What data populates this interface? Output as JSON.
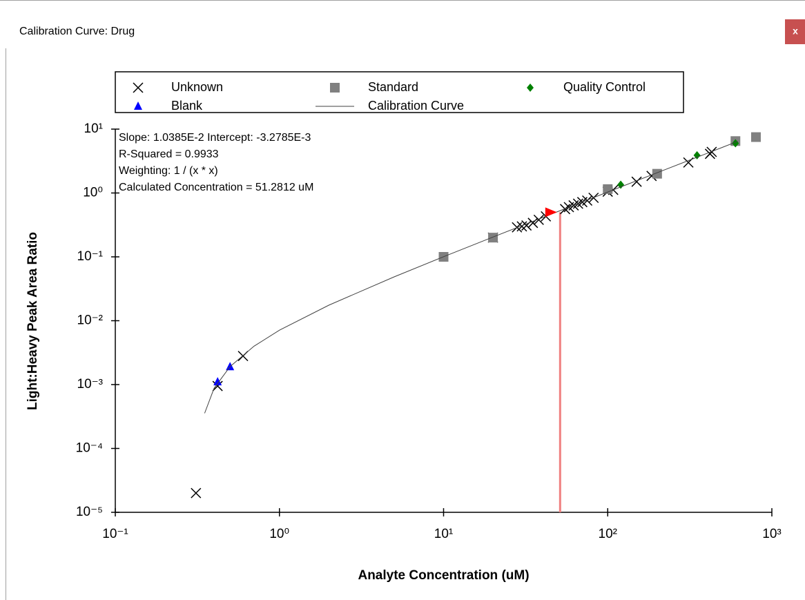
{
  "window": {
    "title": "Calibration Curve: Drug",
    "close": "x"
  },
  "chart_data": {
    "type": "scatter",
    "x_label": "Analyte Concentration (uM)",
    "y_label": "Light:Heavy Peak Area Ratio",
    "log_x": true,
    "log_y": true,
    "xlim": [
      0.1,
      1000
    ],
    "xticks": [
      {
        "value": 0.1,
        "label": "10⁻¹"
      },
      {
        "value": 1,
        "label": "10⁰"
      },
      {
        "value": 10,
        "label": "10¹"
      },
      {
        "value": 100,
        "label": "10²"
      },
      {
        "value": 1000,
        "label": "10³"
      }
    ],
    "ylim": [
      1e-05,
      10
    ],
    "yticks": [
      {
        "value": 1e-05,
        "label": "10⁻⁵"
      },
      {
        "value": 0.0001,
        "label": "10⁻⁴"
      },
      {
        "value": 0.001,
        "label": "10⁻³"
      },
      {
        "value": 0.01,
        "label": "10⁻²"
      },
      {
        "value": 0.1,
        "label": "10⁻¹"
      },
      {
        "value": 1,
        "label": "10⁰"
      },
      {
        "value": 10,
        "label": "10¹"
      }
    ],
    "annotations": [
      "Slope: 1.0385E-2 Intercept: -3.2785E-3",
      "R-Squared = 0.9933",
      "Weighting: 1 / (x * x)",
      "Calculated Concentration = 51.2812 uM"
    ],
    "series": [
      {
        "name": "Unknown",
        "marker": "x",
        "color": "#000000",
        "x": [
          0.31,
          0.42,
          0.6,
          20,
          28,
          30,
          32,
          35,
          38,
          42,
          55,
          58,
          62,
          66,
          70,
          75,
          82,
          100,
          108,
          150,
          185,
          310,
          420,
          430
        ],
        "values": [
          2e-05,
          0.00095,
          0.0028,
          0.2,
          0.29,
          0.3,
          0.31,
          0.34,
          0.38,
          0.43,
          0.56,
          0.6,
          0.64,
          0.68,
          0.72,
          0.76,
          0.84,
          1.05,
          1.12,
          1.5,
          1.85,
          3.0,
          4.1,
          4.4
        ]
      },
      {
        "name": "Standard",
        "marker": "square",
        "color": "#808080",
        "x": [
          10,
          20,
          100,
          200,
          600,
          800
        ],
        "values": [
          0.1,
          0.2,
          1.15,
          2.0,
          6.5,
          7.5
        ]
      },
      {
        "name": "Quality Control",
        "marker": "diamond",
        "color": "#008000",
        "x": [
          120,
          350,
          600
        ],
        "values": [
          1.35,
          3.9,
          6.0
        ]
      },
      {
        "name": "Blank",
        "marker": "triangle",
        "color": "#0000ff",
        "x": [
          0.42,
          0.5
        ],
        "values": [
          0.0011,
          0.0019
        ]
      },
      {
        "name": "Calibration Curve",
        "marker": "line",
        "color": "#404040",
        "x": [
          0.35,
          0.4,
          0.5,
          0.7,
          1,
          2,
          5,
          10,
          20,
          50,
          100,
          200,
          500,
          620
        ],
        "values": [
          0.000356,
          0.000876,
          0.00191,
          0.00399,
          0.00711,
          0.01749,
          0.0486,
          0.1006,
          0.2044,
          0.516,
          1.035,
          2.074,
          5.189,
          6.44
        ]
      }
    ],
    "selected_point": {
      "x": 45,
      "y": 0.5,
      "color": "#ff0000"
    },
    "calculated_x": 51.2812,
    "calculated_line_color": "#f08080"
  }
}
